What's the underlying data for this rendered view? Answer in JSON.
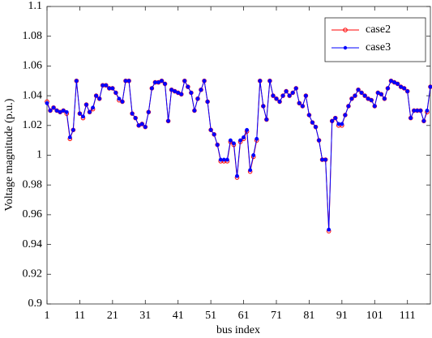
{
  "chart_data": {
    "type": "line",
    "x_label": "bus index",
    "y_label": "Voltage magnitude (p.u.)",
    "x": [
      1,
      2,
      3,
      4,
      5,
      6,
      7,
      8,
      9,
      10,
      11,
      12,
      13,
      14,
      15,
      16,
      17,
      18,
      19,
      20,
      21,
      22,
      23,
      24,
      25,
      26,
      27,
      28,
      29,
      30,
      31,
      32,
      33,
      34,
      35,
      36,
      37,
      38,
      39,
      40,
      41,
      42,
      43,
      44,
      45,
      46,
      47,
      48,
      49,
      50,
      51,
      52,
      53,
      54,
      55,
      56,
      57,
      58,
      59,
      60,
      61,
      62,
      63,
      64,
      65,
      66,
      67,
      68,
      69,
      70,
      71,
      72,
      73,
      74,
      75,
      76,
      77,
      78,
      79,
      80,
      81,
      82,
      83,
      84,
      85,
      86,
      87,
      88,
      89,
      90,
      91,
      92,
      93,
      94,
      95,
      96,
      97,
      98,
      99,
      100,
      101,
      102,
      103,
      104,
      105,
      106,
      107,
      108,
      109,
      110,
      111,
      112,
      113,
      114,
      115,
      116,
      117,
      118
    ],
    "series": [
      {
        "name": "case2",
        "color": "#ff0000",
        "marker": "open-circle",
        "values": [
          1.036,
          1.03,
          1.032,
          1.03,
          1.029,
          1.03,
          1.028,
          1.011,
          1.017,
          1.05,
          1.028,
          1.025,
          1.034,
          1.029,
          1.031,
          1.04,
          1.038,
          1.047,
          1.047,
          1.045,
          1.045,
          1.042,
          1.037,
          1.036,
          1.05,
          1.05,
          1.028,
          1.025,
          1.02,
          1.021,
          1.019,
          1.029,
          1.045,
          1.049,
          1.049,
          1.05,
          1.048,
          1.023,
          1.044,
          1.043,
          1.042,
          1.041,
          1.05,
          1.046,
          1.042,
          1.03,
          1.038,
          1.044,
          1.05,
          1.036,
          1.017,
          1.014,
          1.007,
          0.996,
          0.996,
          0.996,
          1.009,
          1.007,
          0.985,
          1.009,
          1.011,
          1.016,
          0.989,
          0.999,
          1.01,
          1.05,
          1.033,
          1.024,
          1.05,
          1.04,
          1.038,
          1.036,
          1.04,
          1.043,
          1.04,
          1.042,
          1.045,
          1.035,
          1.033,
          1.04,
          1.027,
          1.022,
          1.019,
          1.01,
          0.997,
          0.997,
          0.949,
          1.023,
          1.025,
          1.02,
          1.02,
          1.027,
          1.033,
          1.038,
          1.04,
          1.044,
          1.042,
          1.04,
          1.038,
          1.037,
          1.033,
          1.042,
          1.041,
          1.038,
          1.045,
          1.05,
          1.049,
          1.048,
          1.046,
          1.045,
          1.043,
          1.025,
          1.03,
          1.03,
          1.03,
          1.023,
          1.029,
          1.046
        ]
      },
      {
        "name": "case3",
        "color": "#0000ff",
        "marker": "filled-dot",
        "values": [
          1.035,
          1.03,
          1.032,
          1.03,
          1.029,
          1.03,
          1.029,
          1.012,
          1.017,
          1.05,
          1.028,
          1.026,
          1.034,
          1.029,
          1.032,
          1.04,
          1.038,
          1.047,
          1.047,
          1.045,
          1.045,
          1.042,
          1.038,
          1.036,
          1.05,
          1.05,
          1.028,
          1.025,
          1.02,
          1.021,
          1.019,
          1.029,
          1.045,
          1.049,
          1.049,
          1.05,
          1.048,
          1.023,
          1.044,
          1.043,
          1.042,
          1.041,
          1.05,
          1.046,
          1.042,
          1.03,
          1.038,
          1.044,
          1.05,
          1.036,
          1.017,
          1.014,
          1.007,
          0.997,
          0.997,
          0.997,
          1.01,
          1.008,
          0.986,
          1.01,
          1.012,
          1.017,
          0.99,
          1.0,
          1.011,
          1.05,
          1.033,
          1.024,
          1.05,
          1.04,
          1.038,
          1.036,
          1.04,
          1.043,
          1.04,
          1.042,
          1.045,
          1.035,
          1.033,
          1.04,
          1.027,
          1.022,
          1.019,
          1.01,
          0.997,
          0.997,
          0.95,
          1.023,
          1.025,
          1.021,
          1.021,
          1.027,
          1.033,
          1.038,
          1.04,
          1.044,
          1.042,
          1.04,
          1.038,
          1.037,
          1.033,
          1.042,
          1.041,
          1.038,
          1.045,
          1.05,
          1.049,
          1.048,
          1.046,
          1.045,
          1.043,
          1.025,
          1.03,
          1.03,
          1.03,
          1.023,
          1.03,
          1.046
        ]
      }
    ],
    "xlim": [
      1,
      118
    ],
    "xticks": [
      1,
      11,
      21,
      31,
      41,
      51,
      61,
      71,
      81,
      91,
      101,
      111
    ],
    "ylim": [
      0.9,
      1.1
    ],
    "yticks": [
      0.9,
      0.92,
      0.94,
      0.96,
      0.98,
      1,
      1.02,
      1.04,
      1.06,
      1.08,
      1.1
    ],
    "grid": false,
    "legend": "northeast"
  }
}
